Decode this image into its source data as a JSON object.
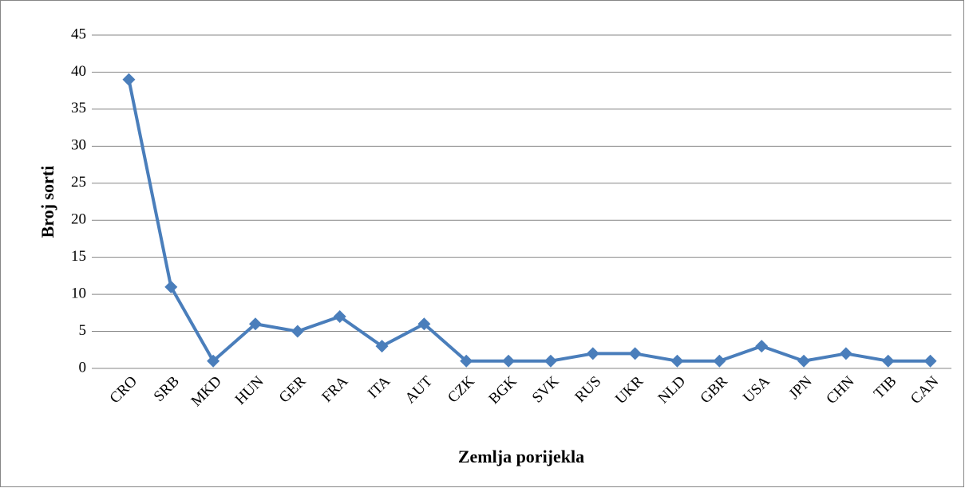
{
  "chart_data": {
    "type": "line",
    "x_label": "Zemlja porijekla",
    "y_label": "Broj sorti",
    "categories": [
      "CRO",
      "SRB",
      "MKD",
      "HUN",
      "GER",
      "FRA",
      "ITA",
      "AUT",
      "CZK",
      "BGK",
      "SVK",
      "RUS",
      "UKR",
      "NLD",
      "GBR",
      "USA",
      "JPN",
      "CHN",
      "TIB",
      "CAN"
    ],
    "values": [
      39,
      11,
      1,
      6,
      5,
      7,
      3,
      6,
      1,
      1,
      1,
      2,
      2,
      1,
      1,
      3,
      1,
      2,
      1,
      1
    ],
    "color": "#4a7ebb",
    "ylim": [
      0,
      45
    ],
    "yticks": [
      0,
      5,
      10,
      15,
      20,
      25,
      30,
      35,
      40,
      45
    ],
    "grid": true
  }
}
